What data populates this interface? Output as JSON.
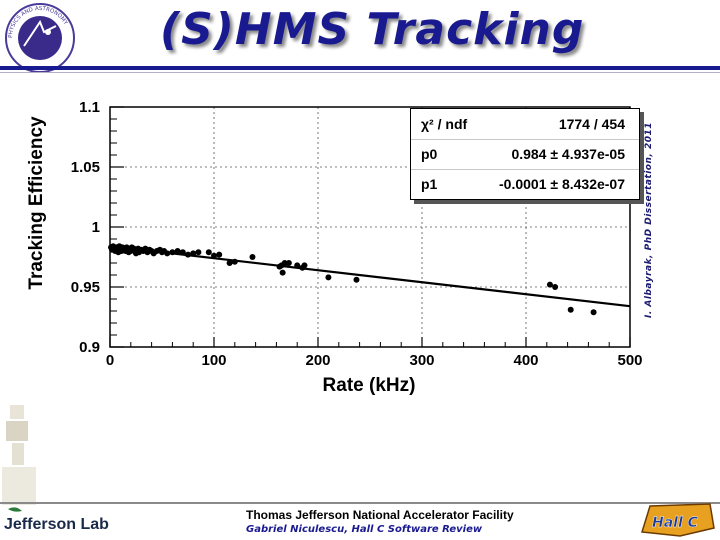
{
  "header": {
    "title": "(S)HMS Tracking",
    "logo_icon": "department-seal-logo",
    "logo_text": "PHYSICS AND ASTRONOMY"
  },
  "side_credit": "I. Albayrak, PhD Dissertation, 2011",
  "fit_box": {
    "rows": [
      {
        "name": "χ² / ndf",
        "value": "1774 / 454"
      },
      {
        "name": "p0",
        "value": "0.984 ± 4.937e-05"
      },
      {
        "name": "p1",
        "value": "-0.0001 ± 8.432e-07"
      }
    ]
  },
  "footer": {
    "facility": "Thomas Jefferson National Accelerator Facility",
    "presenter": "Gabriel Niculescu, Hall C Software Review",
    "lab_logo_text": "Jefferson Lab",
    "hallc_logo_text": "Hall C"
  },
  "colors": {
    "title": "#1a1a90",
    "rule": "#1a1a90",
    "markers": "#000000"
  },
  "chart_data": {
    "type": "scatter",
    "title": "",
    "xlabel": "Rate (kHz)",
    "ylabel": "Tracking Efficiency",
    "xlim": [
      0,
      500
    ],
    "ylim": [
      0.9,
      1.1
    ],
    "xticks": [
      0,
      100,
      200,
      300,
      400,
      500
    ],
    "yticks": [
      0.9,
      0.95,
      1,
      1.05,
      1.1
    ],
    "ytick_labels": [
      "0.9",
      "0.95",
      "1",
      "1.05",
      "1.1"
    ],
    "grid": true,
    "fit_line": {
      "p0": 0.984,
      "p1": -0.0001,
      "x_range": [
        0,
        500
      ]
    },
    "series": [
      {
        "points": [
          [
            1,
            0.983
          ],
          [
            2,
            0.981
          ],
          [
            3,
            0.984
          ],
          [
            4,
            0.982
          ],
          [
            5,
            0.98
          ],
          [
            6,
            0.983
          ],
          [
            7,
            0.981
          ],
          [
            8,
            0.979
          ],
          [
            9,
            0.984
          ],
          [
            10,
            0.982
          ],
          [
            11,
            0.98
          ],
          [
            12,
            0.983
          ],
          [
            13,
            0.981
          ],
          [
            14,
            0.982
          ],
          [
            15,
            0.98
          ],
          [
            16,
            0.983
          ],
          [
            17,
            0.981
          ],
          [
            18,
            0.979
          ],
          [
            19,
            0.982
          ],
          [
            20,
            0.98
          ],
          [
            21,
            0.983
          ],
          [
            22,
            0.981
          ],
          [
            23,
            0.982
          ],
          [
            24,
            0.98
          ],
          [
            25,
            0.978
          ],
          [
            26,
            0.981
          ],
          [
            27,
            0.982
          ],
          [
            28,
            0.979
          ],
          [
            30,
            0.981
          ],
          [
            32,
            0.98
          ],
          [
            34,
            0.982
          ],
          [
            36,
            0.979
          ],
          [
            38,
            0.981
          ],
          [
            40,
            0.98
          ],
          [
            42,
            0.978
          ],
          [
            45,
            0.98
          ],
          [
            48,
            0.981
          ],
          [
            50,
            0.979
          ],
          [
            52,
            0.98
          ],
          [
            55,
            0.978
          ],
          [
            60,
            0.979
          ],
          [
            65,
            0.98
          ],
          [
            70,
            0.979
          ],
          [
            75,
            0.977
          ],
          [
            80,
            0.978
          ],
          [
            85,
            0.979
          ],
          [
            95,
            0.979
          ],
          [
            100,
            0.976
          ],
          [
            105,
            0.977
          ],
          [
            115,
            0.97
          ],
          [
            120,
            0.971
          ],
          [
            137,
            0.975
          ],
          [
            163,
            0.967
          ],
          [
            165,
            0.968
          ],
          [
            166,
            0.962
          ],
          [
            168,
            0.97
          ],
          [
            172,
            0.97
          ],
          [
            180,
            0.968
          ],
          [
            185,
            0.966
          ],
          [
            187,
            0.968
          ],
          [
            210,
            0.958
          ],
          [
            237,
            0.956
          ],
          [
            423,
            0.952
          ],
          [
            428,
            0.95
          ],
          [
            443,
            0.931
          ],
          [
            465,
            0.929
          ]
        ]
      }
    ]
  }
}
